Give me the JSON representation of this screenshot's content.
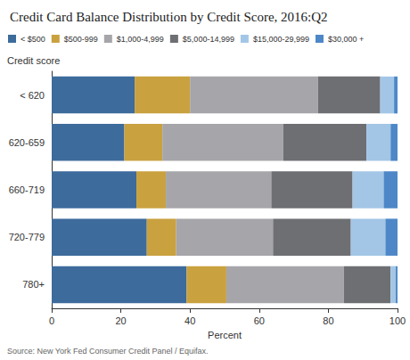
{
  "chart_data": {
    "type": "bar",
    "title": "Credit Card Balance Distribution by Credit Score, 2016:Q2",
    "y_label": "Credit score",
    "x_label": "Percent",
    "source": "Source: New York Fed Consumer Credit Panel / Equifax.",
    "orientation": "horizontal",
    "stacked": true,
    "grid": false,
    "legend": "top",
    "categories": [
      "< 620",
      "620-659",
      "660-719",
      "720-779",
      "780+"
    ],
    "series": [
      {
        "name": "< $500",
        "color": "#3d6b9c",
        "values": [
          24,
          21,
          24.5,
          27.5,
          39
        ]
      },
      {
        "name": "$500-999",
        "color": "#c9a13f",
        "values": [
          16,
          11,
          8.5,
          8.5,
          11.5
        ]
      },
      {
        "name": "$1,000-4,999",
        "color": "#a6a6aa",
        "values": [
          37,
          35,
          30.5,
          28,
          34
        ]
      },
      {
        "name": "$5,000-14,999",
        "color": "#6e6f73",
        "values": [
          18,
          24,
          23.5,
          22.5,
          13.5
        ]
      },
      {
        "name": "$15,000-29,999",
        "color": "#a3c6e6",
        "values": [
          4,
          7,
          9,
          10,
          1.5
        ]
      },
      {
        "name": "$30,000 +",
        "color": "#4d87c7",
        "values": [
          1,
          2,
          4,
          3.5,
          0.5
        ]
      }
    ],
    "xlim": [
      0,
      100
    ],
    "xticks": [
      0,
      20,
      40,
      60,
      80,
      100
    ]
  }
}
